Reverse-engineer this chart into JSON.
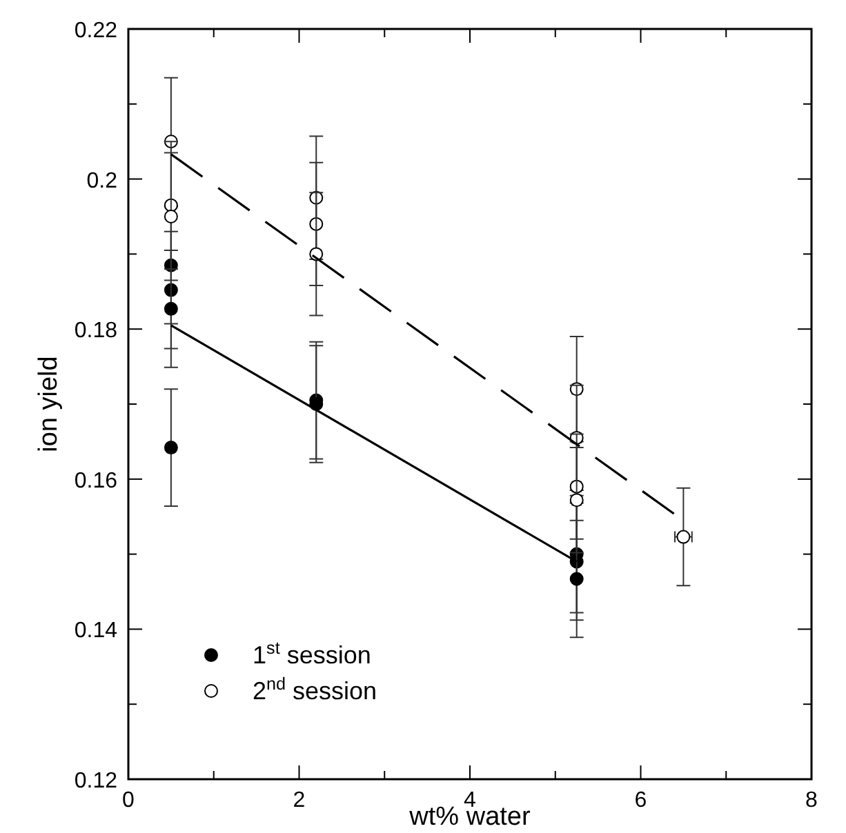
{
  "chart_data": {
    "type": "scatter",
    "xlabel": "wt% water",
    "ylabel": "ion yield",
    "xlim": [
      0,
      8
    ],
    "ylim": [
      0.12,
      0.22
    ],
    "xticks": [
      0,
      {
        "value": 1,
        "label": null
      },
      2,
      {
        "value": 3,
        "label": null
      },
      4,
      {
        "value": 5,
        "label": null
      },
      6,
      {
        "value": 7,
        "label": null
      },
      8
    ],
    "yticks": [
      0.12,
      {
        "value": 0.13,
        "label": null
      },
      0.14,
      {
        "value": 0.15,
        "label": null
      },
      0.16,
      {
        "value": 0.17,
        "label": null
      },
      0.18,
      {
        "value": 0.19,
        "label": null
      },
      0.2,
      {
        "value": 0.21,
        "label": null
      },
      0.22
    ],
    "grid": false,
    "legend": "bottom left",
    "marker": "circle",
    "series": [
      {
        "name": "1$^{st}$ session",
        "color": "#000000",
        "x": [
          0.5,
          0.5,
          0.5,
          0.5,
          2.2,
          2.2,
          5.25,
          5.25,
          5.25
        ],
        "values": [
          0.1885,
          0.1852,
          0.1827,
          0.1642,
          0.1705,
          0.17,
          0.15,
          0.149,
          0.1467
        ],
        "errors": [
          0.0078,
          0.0078,
          0.0078,
          0.0078,
          0.0078,
          0.0078,
          0.0078,
          0.0078,
          0.0078
        ]
      },
      {
        "name": "2$^{nd}$ session",
        "color": "#ffffff",
        "x": [
          0.5,
          0.5,
          0.5,
          2.2,
          2.2,
          2.2,
          5.25,
          5.25,
          5.25,
          5.25,
          6.5
        ],
        "values": [
          0.205,
          0.1965,
          0.195,
          0.1975,
          0.194,
          0.19,
          0.172,
          0.1655,
          0.159,
          0.1572,
          0.1523
        ],
        "errors": [
          0.0085,
          0.0085,
          0.0085,
          0.0082,
          0.0082,
          0.0082,
          0.007,
          0.007,
          0.007,
          0.007,
          0.0065
        ],
        "xerrors": [
          null,
          null,
          null,
          null,
          null,
          null,
          0.05,
          0.05,
          0.05,
          0.05,
          0.1
        ]
      },
      {
        "type": "line",
        "color": "#000000",
        "line_style": "solid",
        "marker": "none",
        "x": [
          0.5,
          5.25
        ],
        "values": [
          0.1805,
          0.149
        ]
      },
      {
        "type": "line",
        "color": "#000000",
        "line_style": "dashed",
        "marker": "none",
        "x": [
          0.5,
          6.4
        ],
        "values": [
          0.2033,
          0.1553
        ]
      }
    ]
  }
}
